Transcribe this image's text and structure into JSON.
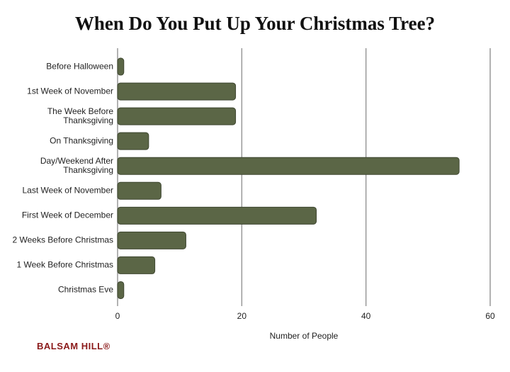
{
  "chart_data": {
    "type": "barh",
    "title": "When Do You Put Up Your Christmas Tree?",
    "categories": [
      "Before Halloween",
      "1st Week of November",
      "The Week Before Thanksgiving",
      "On Thanksgiving",
      "Day/Weekend After Thanksgiving",
      "Last Week of November",
      "First Week of December",
      "2 Weeks Before Christmas",
      "1 Week Before Christmas",
      "Christmas Eve"
    ],
    "values": [
      1,
      19,
      19,
      5,
      55,
      7,
      32,
      11,
      6,
      1
    ],
    "color": "#5b6646",
    "xlim": [
      0,
      60
    ],
    "xticks": [
      0,
      20,
      40,
      60
    ],
    "grid": true,
    "xlabel": "Number of People"
  },
  "brand": "BALSAM HILL®"
}
